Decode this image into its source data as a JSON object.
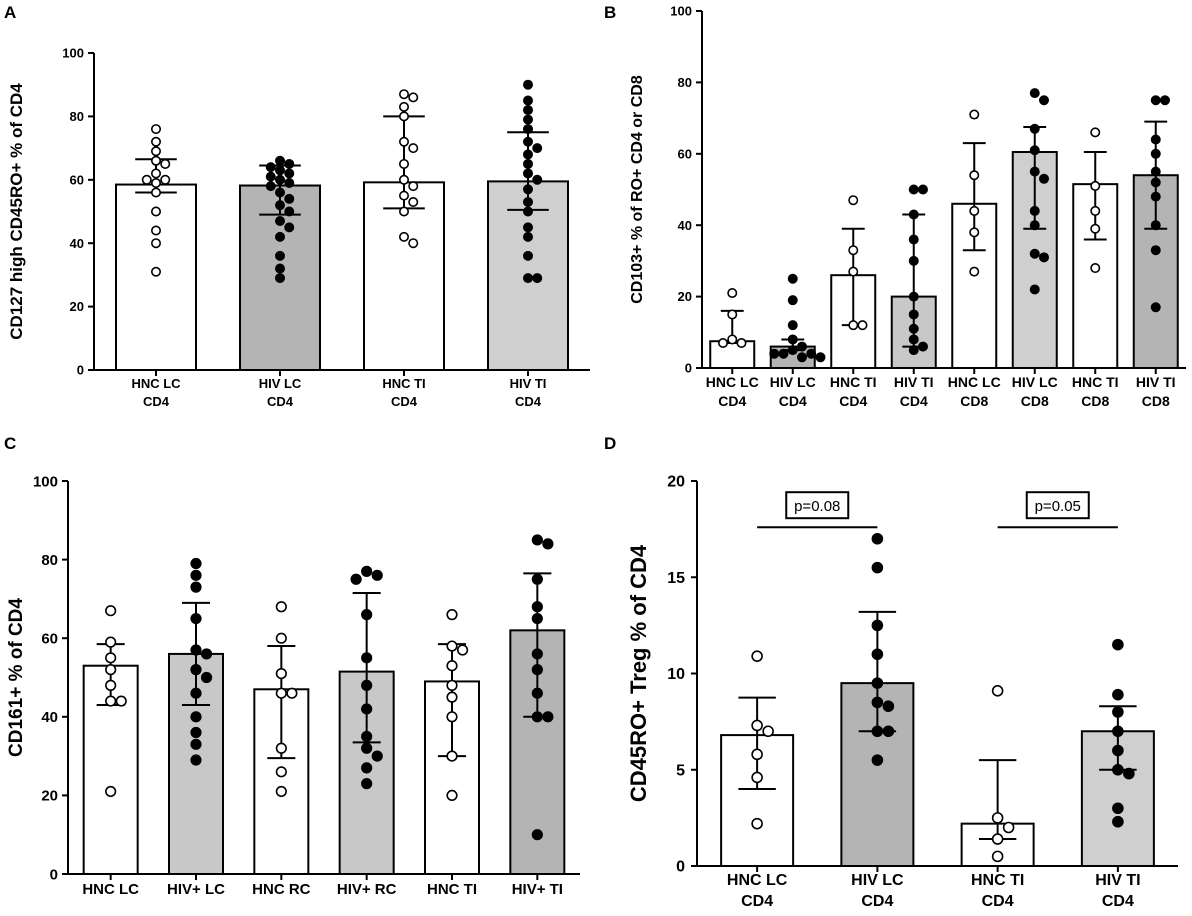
{
  "chart_data": [
    {
      "panel": "A",
      "type": "bar",
      "ylabel": "CD127 high CD45RO+ % of  CD4",
      "ylim": [
        0,
        100
      ],
      "yticks": [
        0,
        20,
        40,
        60,
        80,
        100
      ],
      "categories": [
        [
          "HNC LC",
          "CD4"
        ],
        [
          "HIV LC",
          "CD4"
        ],
        [
          "HNC TI",
          "CD4"
        ],
        [
          "HIV TI",
          "CD4"
        ]
      ],
      "bar_colors": [
        "#ffffff",
        "#b4b4b4",
        "#ffffff",
        "#cfcfcf"
      ],
      "marker_filled": [
        false,
        true,
        false,
        true
      ],
      "values": [
        58.5,
        58.2,
        59.2,
        59.5
      ],
      "error_low": [
        56,
        49,
        51,
        50.5
      ],
      "error_high": [
        66.5,
        64.5,
        80,
        75
      ],
      "points": [
        [
          76,
          72,
          69,
          66,
          65,
          62,
          60,
          60,
          59,
          56,
          50,
          44,
          40,
          31
        ],
        [
          66,
          65,
          64,
          63,
          62,
          61,
          60,
          59,
          58,
          56,
          54,
          52,
          50,
          47,
          45,
          42,
          36,
          32,
          29
        ],
        [
          87,
          86,
          83,
          80,
          72,
          70,
          65,
          60,
          58,
          55,
          53,
          50,
          42,
          40
        ],
        [
          90,
          85,
          82,
          79,
          76,
          72,
          70,
          68,
          65,
          62,
          60,
          57,
          53,
          50,
          45,
          42,
          36,
          29,
          29
        ]
      ]
    },
    {
      "panel": "B",
      "type": "bar",
      "ylabel": "CD103+ % of RO+ CD4 or CD8",
      "ylim": [
        0,
        100
      ],
      "yticks": [
        0,
        20,
        40,
        60,
        80,
        100
      ],
      "categories": [
        [
          "HNC LC",
          "CD4"
        ],
        [
          "HIV LC",
          "CD4"
        ],
        [
          "HNC TI",
          "CD4"
        ],
        [
          "HIV TI",
          "CD4"
        ],
        [
          "HNC LC",
          "CD8"
        ],
        [
          "HIV LC",
          "CD8"
        ],
        [
          "HNC TI",
          "CD8"
        ],
        [
          "HIV TI",
          "CD8"
        ]
      ],
      "bar_colors": [
        "#ffffff",
        "#b4b4b4",
        "#ffffff",
        "#c8c8c8",
        "#ffffff",
        "#cfcfcf",
        "#ffffff",
        "#b4b4b4"
      ],
      "marker_filled": [
        false,
        true,
        false,
        true,
        false,
        true,
        false,
        true
      ],
      "values": [
        7.5,
        6,
        26,
        20,
        46,
        60.5,
        51.5,
        54
      ],
      "error_low": [
        7,
        5,
        12,
        6,
        33,
        39,
        36,
        39
      ],
      "error_high": [
        16,
        8,
        39,
        43,
        63,
        67.5,
        60.5,
        69
      ],
      "points": [
        [
          21,
          15,
          8,
          7,
          7
        ],
        [
          25,
          19,
          12,
          8,
          6,
          5,
          4,
          4,
          4,
          3,
          3
        ],
        [
          47,
          33,
          27,
          12,
          12
        ],
        [
          50,
          50,
          43,
          36,
          30,
          20,
          15,
          11,
          8,
          6,
          5
        ],
        [
          71,
          54,
          44,
          38,
          27
        ],
        [
          77,
          75,
          67,
          61,
          55,
          53,
          44,
          40,
          32,
          31,
          22
        ],
        [
          66,
          51,
          44,
          39,
          28
        ],
        [
          75,
          75,
          64,
          60,
          55,
          52,
          48,
          40,
          33,
          17
        ]
      ]
    },
    {
      "panel": "C",
      "type": "bar",
      "ylabel": "CD161+ % of CD4",
      "ylim": [
        0,
        100
      ],
      "yticks": [
        0,
        20,
        40,
        60,
        80,
        100
      ],
      "categories": [
        [
          "HNC LC"
        ],
        [
          "HIV+ LC"
        ],
        [
          "HNC RC"
        ],
        [
          "HIV+ RC"
        ],
        [
          "HNC TI"
        ],
        [
          "HIV+ TI"
        ]
      ],
      "bar_colors": [
        "#ffffff",
        "#c8c8c8",
        "#ffffff",
        "#c8c8c8",
        "#ffffff",
        "#b4b4b4"
      ],
      "marker_filled": [
        false,
        true,
        false,
        true,
        false,
        true
      ],
      "values": [
        53,
        56,
        47,
        51.5,
        49,
        62
      ],
      "error_low": [
        43,
        43,
        29.5,
        33.5,
        30,
        40
      ],
      "error_high": [
        58.5,
        69,
        58,
        71.5,
        58.5,
        76.5
      ],
      "points": [
        [
          67,
          59,
          55,
          52,
          48,
          44,
          44,
          21
        ],
        [
          79,
          76,
          73,
          65,
          57,
          56,
          52,
          50,
          46,
          40,
          36,
          33,
          29
        ],
        [
          68,
          60,
          51,
          46,
          46,
          32,
          26,
          21
        ],
        [
          77,
          76,
          75,
          66,
          55,
          48,
          42,
          35,
          32,
          30,
          27,
          23
        ],
        [
          66,
          58,
          57,
          53,
          48,
          45,
          40,
          30,
          20
        ],
        [
          85,
          84,
          75,
          68,
          65,
          56,
          52,
          46,
          40,
          40,
          10
        ]
      ]
    },
    {
      "panel": "D",
      "type": "bar",
      "ylabel": "CD45RO+ Treg % of  CD4",
      "ylim": [
        0,
        20
      ],
      "yticks": [
        0,
        5,
        10,
        15,
        20
      ],
      "categories": [
        [
          "HNC LC",
          "CD4"
        ],
        [
          "HIV LC",
          "CD4"
        ],
        [
          "HNC TI",
          "CD4"
        ],
        [
          "HIV TI",
          "CD4"
        ]
      ],
      "bar_colors": [
        "#ffffff",
        "#b4b4b4",
        "#ffffff",
        "#cfcfcf"
      ],
      "marker_filled": [
        false,
        true,
        false,
        true
      ],
      "values": [
        6.8,
        9.5,
        2.2,
        7.0
      ],
      "error_low": [
        4.0,
        7.0,
        1.4,
        5.0
      ],
      "error_high": [
        8.75,
        13.2,
        5.5,
        8.3
      ],
      "points": [
        [
          10.9,
          7.3,
          7.0,
          5.8,
          4.6,
          2.2
        ],
        [
          17.0,
          15.5,
          12.5,
          11.0,
          9.5,
          8.5,
          8.3,
          7.0,
          7.0,
          5.5
        ],
        [
          9.1,
          2.5,
          2.0,
          1.4,
          0.5
        ],
        [
          11.5,
          8.9,
          8.0,
          7.0,
          6.0,
          5.0,
          4.8,
          3.0,
          2.3
        ]
      ],
      "comparisons": [
        {
          "from": 0,
          "to": 1,
          "y": 17.6,
          "label": "p=0.08"
        },
        {
          "from": 2,
          "to": 3,
          "y": 17.6,
          "label": "p=0.05"
        }
      ]
    }
  ]
}
